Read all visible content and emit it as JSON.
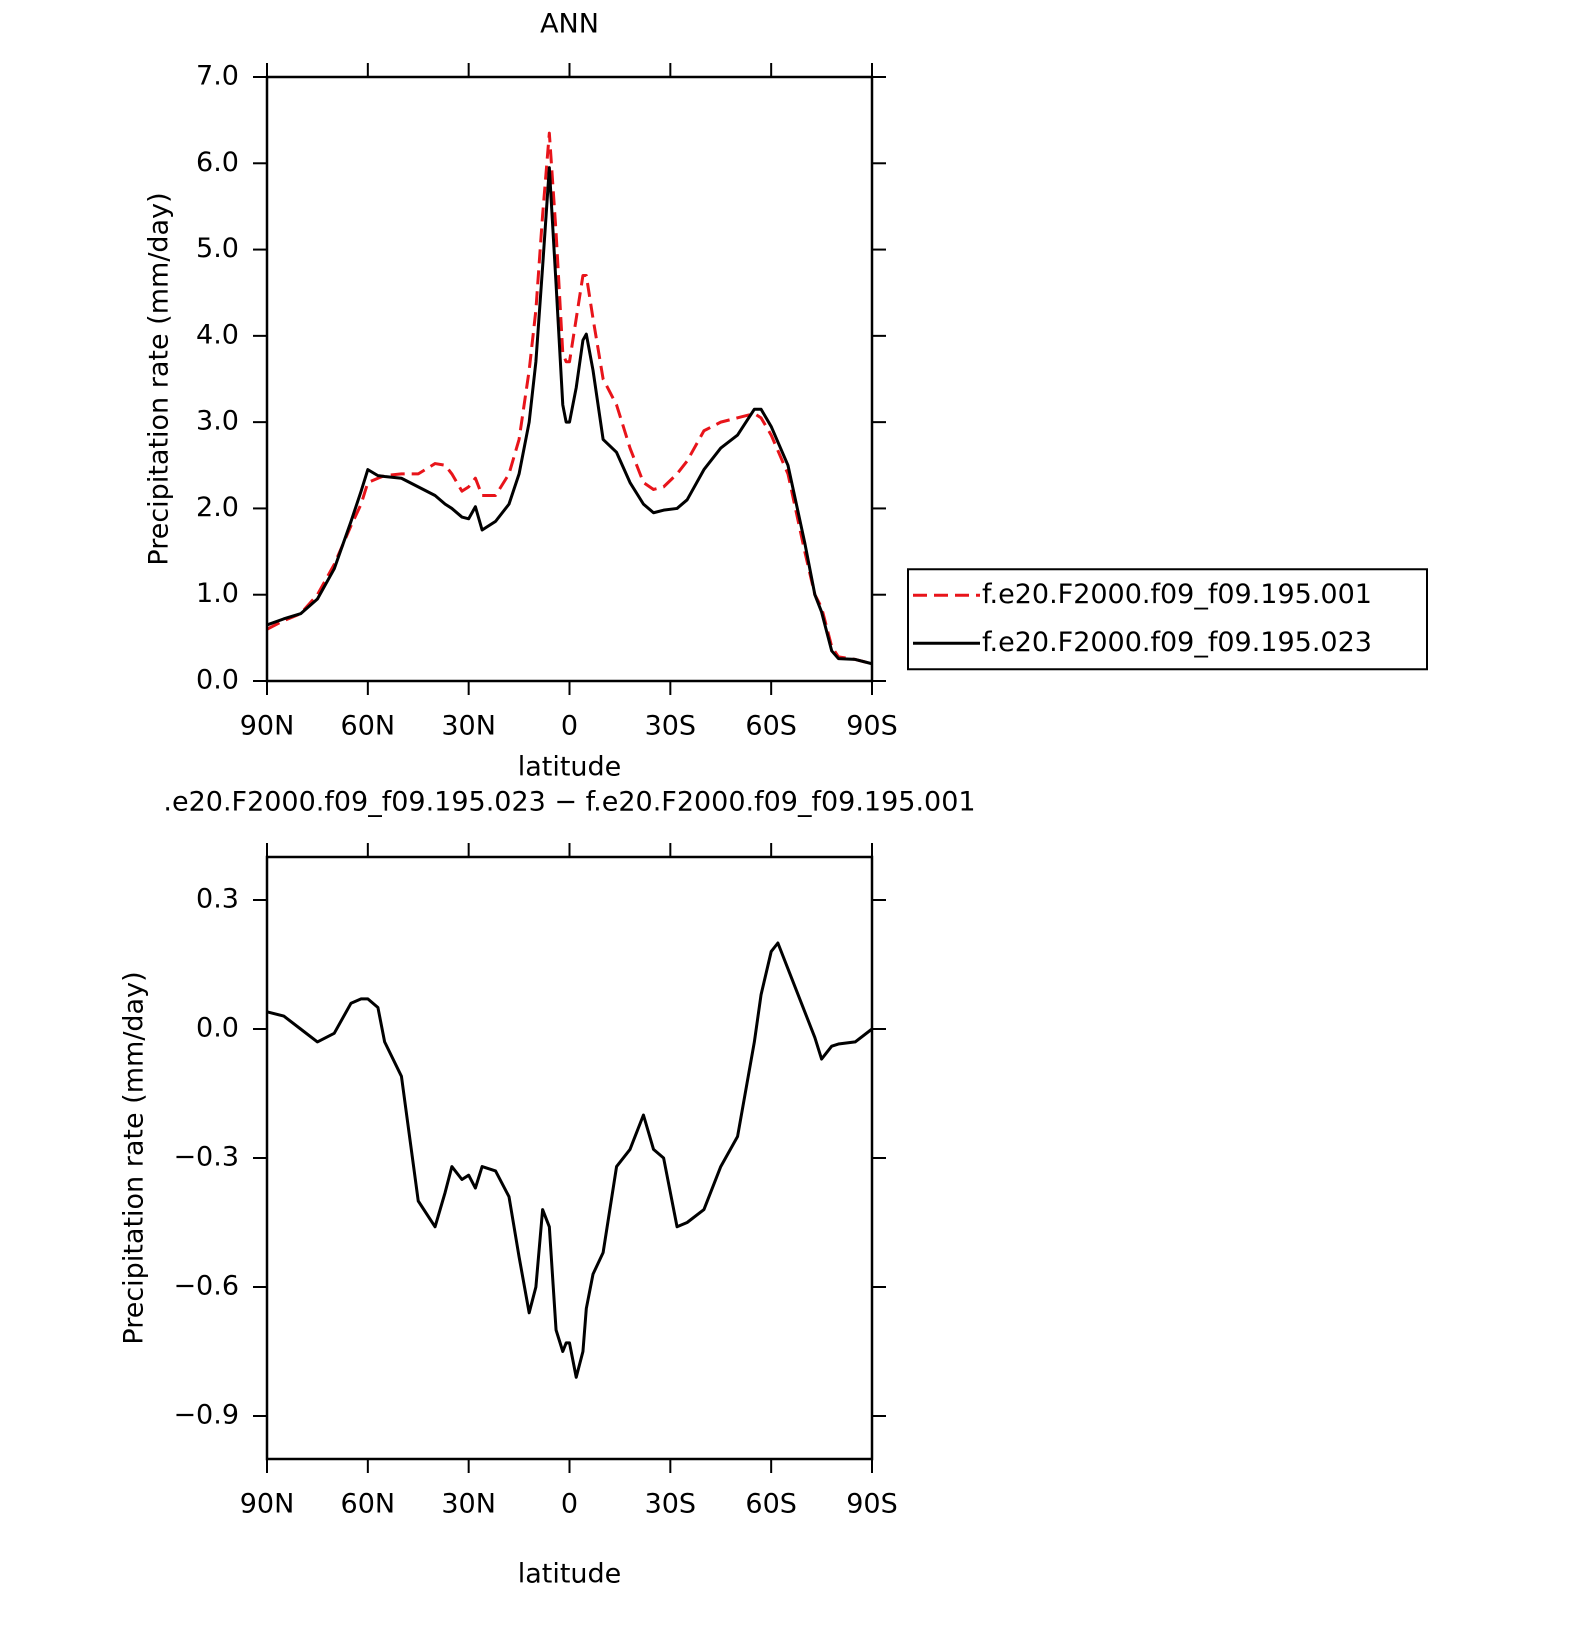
{
  "chart_data": [
    {
      "type": "line",
      "title": "ANN",
      "xlabel": "latitude",
      "ylabel": "Precipitation rate (mm/day)",
      "x": [
        90,
        85,
        80,
        75,
        70,
        65,
        62,
        60,
        57,
        55,
        50,
        45,
        40,
        37,
        35,
        32,
        30,
        28,
        26,
        22,
        18,
        15,
        12,
        10,
        8,
        6,
        4,
        2,
        1,
        0,
        -2,
        -4,
        -5,
        -7,
        -10,
        -14,
        -18,
        -22,
        -25,
        -28,
        -32,
        -35,
        -40,
        -45,
        -50,
        -55,
        -57,
        -60,
        -65,
        -70,
        -73,
        -75,
        -78,
        -80,
        -85,
        -90
      ],
      "xlim": [
        90,
        -90
      ],
      "xticks": [
        {
          "value": 90,
          "label": "90N"
        },
        {
          "value": 60,
          "label": "60N"
        },
        {
          "value": 30,
          "label": "30N"
        },
        0,
        {
          "value": -30,
          "label": "30S"
        },
        {
          "value": -60,
          "label": "60S"
        },
        {
          "value": -90,
          "label": "90S"
        }
      ],
      "ylim": [
        0,
        7
      ],
      "yticks": [
        {
          "value": 0,
          "label": "0.0"
        },
        {
          "value": 1,
          "label": "1.0"
        },
        {
          "value": 2,
          "label": "2.0"
        },
        {
          "value": 3,
          "label": "3.0"
        },
        {
          "value": 4,
          "label": "4.0"
        },
        {
          "value": 5,
          "label": "5.0"
        },
        {
          "value": 6,
          "label": "6.0"
        },
        {
          "value": 7,
          "label": "7.0"
        }
      ],
      "legend": "right",
      "series": [
        {
          "name": "f.e20.F2000.f09_f09.195.001",
          "color": "#e8141a",
          "style": "dashed",
          "values": [
            0.6,
            0.7,
            0.78,
            1.0,
            1.35,
            1.8,
            2.05,
            2.3,
            2.35,
            2.38,
            2.4,
            2.4,
            2.52,
            2.5,
            2.4,
            2.2,
            2.25,
            2.35,
            2.15,
            2.15,
            2.4,
            2.8,
            3.6,
            4.3,
            5.4,
            6.35,
            5.2,
            3.8,
            3.7,
            3.7,
            4.2,
            4.7,
            4.7,
            4.2,
            3.5,
            3.2,
            2.7,
            2.3,
            2.22,
            2.25,
            2.4,
            2.55,
            2.9,
            3.0,
            3.05,
            3.1,
            3.05,
            2.85,
            2.4,
            1.5,
            1.0,
            0.85,
            0.4,
            0.28,
            0.25,
            0.2
          ]
        },
        {
          "name": "f.e20.F2000.f09_f09.195.023",
          "color": "#000000",
          "style": "solid",
          "values": [
            0.65,
            0.72,
            0.78,
            0.95,
            1.3,
            1.85,
            2.2,
            2.45,
            2.38,
            2.37,
            2.35,
            2.25,
            2.15,
            2.05,
            2.0,
            1.9,
            1.88,
            2.02,
            1.75,
            1.85,
            2.05,
            2.4,
            3.0,
            3.7,
            4.8,
            5.95,
            4.6,
            3.2,
            3.0,
            3.0,
            3.4,
            3.95,
            4.02,
            3.6,
            2.8,
            2.65,
            2.3,
            2.05,
            1.95,
            1.98,
            2.0,
            2.1,
            2.45,
            2.7,
            2.85,
            3.15,
            3.15,
            2.95,
            2.5,
            1.6,
            1.0,
            0.8,
            0.35,
            0.26,
            0.25,
            0.2
          ]
        }
      ]
    },
    {
      "type": "line",
      "title": ".e20.F2000.f09_f09.195.023 − f.e20.F2000.f09_f09.195.001",
      "xlabel": "latitude",
      "ylabel": "Precipitation rate (mm/day)",
      "x": [
        90,
        85,
        80,
        75,
        70,
        65,
        62,
        60,
        57,
        55,
        50,
        45,
        40,
        37,
        35,
        32,
        30,
        28,
        26,
        22,
        18,
        15,
        12,
        10,
        8,
        6,
        4,
        2,
        1,
        0,
        -2,
        -4,
        -5,
        -7,
        -10,
        -14,
        -18,
        -22,
        -25,
        -28,
        -32,
        -35,
        -40,
        -45,
        -50,
        -55,
        -57,
        -60,
        -62,
        -65,
        -70,
        -73,
        -75,
        -78,
        -80,
        -85,
        -90
      ],
      "xlim": [
        90,
        -90
      ],
      "xticks": [
        {
          "value": 90,
          "label": "90N"
        },
        {
          "value": 60,
          "label": "60N"
        },
        {
          "value": 30,
          "label": "30N"
        },
        0,
        {
          "value": -30,
          "label": "30S"
        },
        {
          "value": -60,
          "label": "60S"
        },
        {
          "value": -90,
          "label": "90S"
        }
      ],
      "ylim": [
        -1.0,
        0.4
      ],
      "yticks": [
        {
          "value": -0.9,
          "label": "−0.9"
        },
        {
          "value": -0.6,
          "label": "−0.6"
        },
        {
          "value": -0.3,
          "label": "−0.3"
        },
        {
          "value": 0,
          "label": "0.0"
        },
        0.3
      ],
      "series": [
        {
          "color": "#000000",
          "style": "solid",
          "values": [
            0.04,
            0.03,
            0.0,
            -0.03,
            -0.01,
            0.06,
            0.07,
            0.07,
            0.05,
            -0.03,
            -0.11,
            -0.4,
            -0.46,
            -0.38,
            -0.32,
            -0.35,
            -0.34,
            -0.37,
            -0.32,
            -0.33,
            -0.39,
            -0.53,
            -0.66,
            -0.6,
            -0.42,
            -0.46,
            -0.7,
            -0.75,
            -0.73,
            -0.73,
            -0.81,
            -0.75,
            -0.65,
            -0.57,
            -0.52,
            -0.32,
            -0.28,
            -0.2,
            -0.28,
            -0.3,
            -0.46,
            -0.45,
            -0.42,
            -0.32,
            -0.25,
            -0.03,
            0.08,
            0.18,
            0.2,
            0.14,
            0.04,
            -0.02,
            -0.07,
            -0.04,
            -0.035,
            -0.03,
            0.0
          ]
        }
      ]
    }
  ]
}
